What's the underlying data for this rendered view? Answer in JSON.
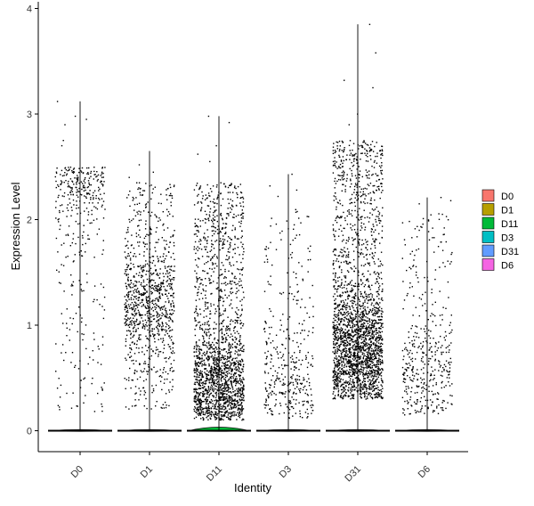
{
  "chart_data": {
    "type": "violin",
    "title": "",
    "xlabel": "Identity",
    "ylabel": "Expression Level",
    "ylim": [
      -0.2,
      4.05
    ],
    "yticks": [
      0,
      1,
      2,
      3,
      4
    ],
    "categories": [
      "D0",
      "D1",
      "D11",
      "D3",
      "D31",
      "D6"
    ],
    "legend_position": "right",
    "grid": false,
    "series": [
      {
        "name": "D0",
        "color": "#F8766D",
        "max": 3.12,
        "expressing_low": 0.18,
        "expressing_high": 2.5,
        "density": 380,
        "peak": 2.4,
        "outliers": [
          2.75,
          2.98,
          3.12,
          2.95,
          2.7,
          2.9
        ]
      },
      {
        "name": "D1",
        "color": "#B79F00",
        "max": 2.65,
        "expressing_low": 0.2,
        "expressing_high": 2.35,
        "density": 1000,
        "peak": 1.2,
        "outliers": [
          2.52,
          2.45,
          2.4
        ]
      },
      {
        "name": "D11",
        "color": "#00BA38",
        "max": 2.98,
        "expressing_low": 0.1,
        "expressing_high": 2.35,
        "density": 1900,
        "peak": 0.45,
        "outliers": [
          2.98,
          2.92,
          2.62,
          2.7,
          2.55
        ]
      },
      {
        "name": "D3",
        "color": "#00BFC4",
        "max": 2.43,
        "expressing_low": 0.12,
        "expressing_high": 2.1,
        "density": 380,
        "peak": 0.5,
        "outliers": [
          2.43,
          2.32,
          2.28,
          2.22
        ]
      },
      {
        "name": "D31",
        "color": "#619CFF",
        "max": 3.85,
        "expressing_low": 0.3,
        "expressing_high": 2.75,
        "density": 2400,
        "peak": 0.75,
        "outliers": [
          3.85,
          3.58,
          3.32,
          3.25,
          3.0,
          2.9
        ]
      },
      {
        "name": "D6",
        "color": "#F564E3",
        "max": 2.21,
        "expressing_low": 0.15,
        "expressing_high": 2.08,
        "density": 420,
        "peak": 0.6,
        "outliers": [
          2.21,
          2.15,
          2.18
        ]
      }
    ]
  }
}
